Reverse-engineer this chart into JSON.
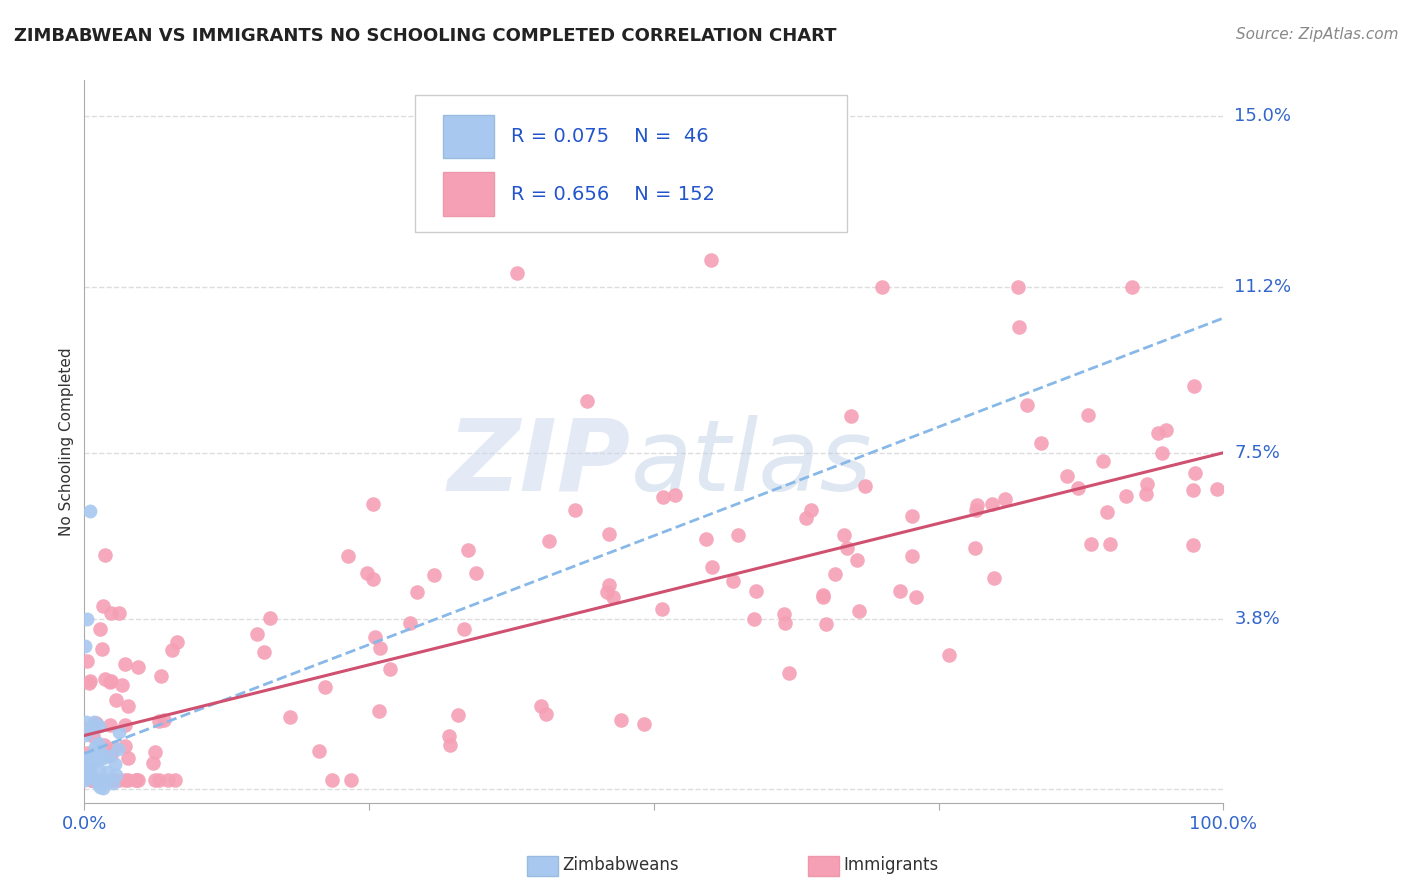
{
  "title": "ZIMBABWEAN VS IMMIGRANTS NO SCHOOLING COMPLETED CORRELATION CHART",
  "source": "Source: ZipAtlas.com",
  "ylabel": "No Schooling Completed",
  "xlim": [
    0.0,
    1.0
  ],
  "ylim": [
    -0.003,
    0.158
  ],
  "ytick_vals": [
    0.0,
    0.038,
    0.075,
    0.112,
    0.15
  ],
  "ytick_labels": [
    "",
    "3.8%",
    "7.5%",
    "11.2%",
    "15.0%"
  ],
  "xtick_vals": [
    0.0,
    0.25,
    0.5,
    0.75,
    1.0
  ],
  "xtick_labels": [
    "0.0%",
    "",
    "",
    "",
    "100.0%"
  ],
  "zimbabwean_R": 0.075,
  "zimbabwean_N": 46,
  "immigrant_R": 0.656,
  "immigrant_N": 152,
  "zimbabwean_color": "#a8c8f0",
  "zimbabwean_edge": "#88aadd",
  "immigrant_color": "#f5a0b5",
  "immigrant_edge": "#e080a0",
  "trend_blue_color": "#88b8e8",
  "trend_pink_color": "#d05070",
  "title_color": "#222222",
  "axis_tick_color": "#3366cc",
  "legend_text_color": "#2255cc",
  "source_color": "#888888",
  "watermark_zip_color": "#c8d8ee",
  "watermark_atlas_color": "#b0c8e0",
  "background_color": "#ffffff",
  "grid_color": "#dddddd",
  "grid_linestyle": "--",
  "spine_color": "#aaaaaa",
  "title_fontsize": 13,
  "axis_fontsize": 13,
  "legend_fontsize": 14,
  "ylabel_fontsize": 11,
  "blue_line_start_x": 0.0,
  "blue_line_start_y": 0.008,
  "blue_line_end_x": 1.0,
  "blue_line_end_y": 0.105,
  "pink_line_start_x": 0.0,
  "pink_line_start_y": 0.012,
  "pink_line_end_x": 1.0,
  "pink_line_end_y": 0.075
}
